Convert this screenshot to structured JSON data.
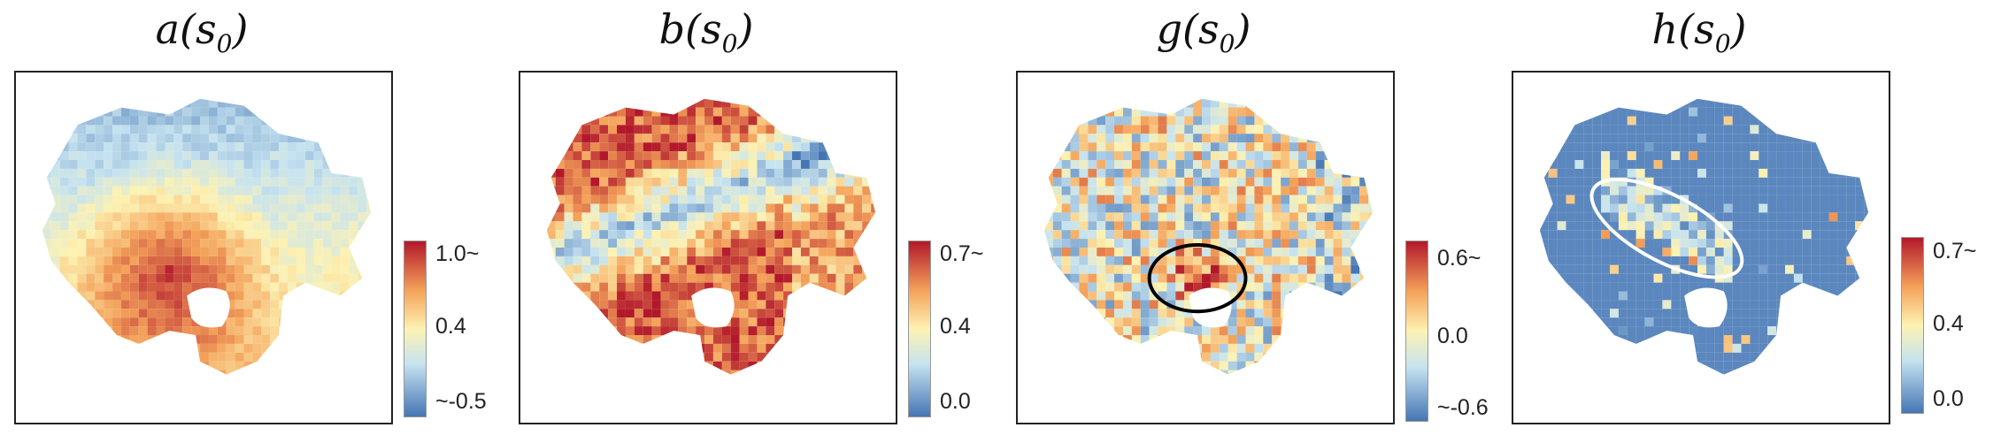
{
  "panels": [
    {
      "title_base": "a",
      "title_sub": "0",
      "map_name": "map-a",
      "scale": "rdylbu",
      "colorbar_ticks": [
        "1.0~",
        "0.4",
        "~-0.5"
      ],
      "mean_level": 0.65,
      "annotation": null
    },
    {
      "title_base": "b",
      "title_sub": "0",
      "map_name": "map-b",
      "scale": "rdylbu",
      "colorbar_ticks": [
        "0.7~",
        "0.4",
        "0.0"
      ],
      "mean_level": 0.55,
      "annotation": null
    },
    {
      "title_base": "g",
      "title_sub": "0",
      "map_name": "map-g",
      "scale": "rdylbu",
      "colorbar_ticks": [
        "0.6~",
        "0.0",
        "~-0.6"
      ],
      "mean_level": 0.5,
      "annotation": {
        "shape": "ellipse",
        "color": "#000000"
      }
    },
    {
      "title_base": "h",
      "title_sub": "0",
      "map_name": "map-h",
      "scale": "rdylbu",
      "colorbar_ticks": [
        "0.7~",
        "0.4",
        "0.0"
      ],
      "mean_level": 0.1,
      "annotation": {
        "shape": "ellipse",
        "color": "#ffffff"
      }
    }
  ],
  "colors": {
    "red": "#b2182b",
    "orange": "#f4a25a",
    "yellow": "#fdf2b2",
    "lightblue": "#c6e3f0",
    "blue": "#4575b4"
  }
}
